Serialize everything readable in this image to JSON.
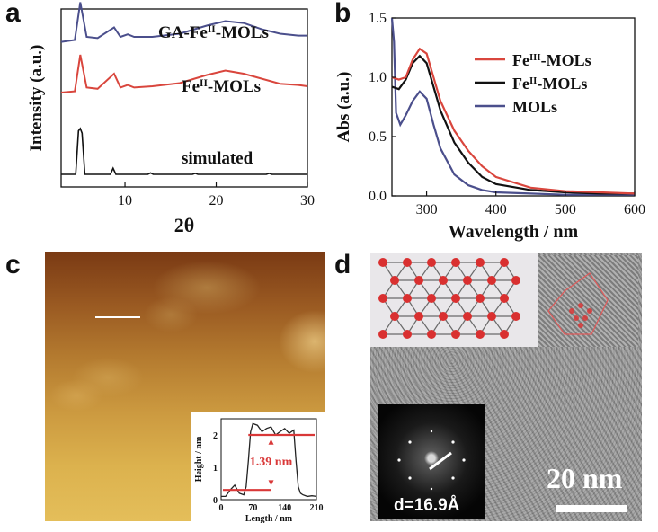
{
  "panels": {
    "a": "a",
    "b": "b",
    "c": "c",
    "d": "d"
  },
  "chart_data": [
    {
      "panel": "a",
      "type": "line",
      "xlabel": "2θ",
      "ylabel": "Intensity (a.u.)",
      "xlim": [
        3,
        30
      ],
      "xticks": [
        "10",
        "20",
        "30"
      ],
      "series": [
        {
          "name": "GA-Fe",
          "sup": "II",
          "suffix": "-MOLs",
          "color": "#4b4f8c",
          "x": [
            3,
            4.5,
            5.1,
            5.8,
            7,
            8.8,
            9.5,
            10.3,
            11,
            13,
            16,
            19,
            21,
            23,
            25,
            27,
            29,
            30
          ],
          "y": [
            0.12,
            0.15,
            0.75,
            0.2,
            0.18,
            0.35,
            0.2,
            0.24,
            0.2,
            0.2,
            0.25,
            0.38,
            0.45,
            0.42,
            0.32,
            0.25,
            0.22,
            0.22
          ]
        },
        {
          "name": "Fe",
          "sup": "II",
          "suffix": "-MOLs",
          "color": "#d9463d",
          "x": [
            3,
            4.5,
            5.1,
            5.8,
            7,
            8.8,
            9.5,
            10.3,
            11,
            13,
            16,
            19,
            21,
            23,
            25,
            27,
            29,
            30
          ],
          "y": [
            0.1,
            0.12,
            0.7,
            0.18,
            0.16,
            0.4,
            0.18,
            0.22,
            0.18,
            0.2,
            0.25,
            0.38,
            0.45,
            0.4,
            0.32,
            0.24,
            0.22,
            0.2
          ]
        },
        {
          "name": "simulated",
          "sup": "",
          "suffix": "",
          "color": "#111111",
          "x": [
            3,
            4.6,
            4.9,
            5.1,
            5.3,
            5.6,
            8.4,
            8.7,
            9.0,
            12.5,
            12.8,
            13.1,
            17.4,
            17.7,
            18,
            25.5,
            25.8,
            26.1,
            30
          ],
          "y": [
            0.02,
            0.02,
            0.95,
            1.0,
            0.9,
            0.02,
            0.02,
            0.15,
            0.02,
            0.02,
            0.05,
            0.02,
            0.02,
            0.04,
            0.02,
            0.02,
            0.04,
            0.02,
            0.02
          ]
        }
      ]
    },
    {
      "panel": "b",
      "type": "line",
      "xlabel": "Wavelength / nm",
      "ylabel": "Abs (a.u.)",
      "xlim": [
        250,
        600
      ],
      "ylim": [
        0,
        1.5
      ],
      "xticks": [
        "300",
        "400",
        "500",
        "600"
      ],
      "yticks": [
        "0.0",
        "0.5",
        "1.0",
        "1.5"
      ],
      "legend": "top-right",
      "series": [
        {
          "name": "Fe",
          "sup": "III",
          "suffix": "-MOLs",
          "color": "#d9463d",
          "x": [
            250,
            260,
            270,
            280,
            290,
            300,
            310,
            320,
            340,
            360,
            380,
            400,
            450,
            500,
            550,
            600
          ],
          "y": [
            1.0,
            0.98,
            1.0,
            1.15,
            1.24,
            1.2,
            1.0,
            0.8,
            0.55,
            0.38,
            0.25,
            0.16,
            0.07,
            0.04,
            0.03,
            0.02
          ]
        },
        {
          "name": "Fe",
          "sup": "II",
          "suffix": "-MOLs",
          "color": "#111111",
          "x": [
            250,
            260,
            270,
            280,
            290,
            300,
            310,
            320,
            340,
            360,
            380,
            400,
            450,
            500,
            550,
            600
          ],
          "y": [
            0.92,
            0.9,
            0.98,
            1.12,
            1.18,
            1.12,
            0.92,
            0.72,
            0.45,
            0.28,
            0.16,
            0.1,
            0.05,
            0.03,
            0.02,
            0.02
          ]
        },
        {
          "name": "MOLs",
          "sup": "",
          "suffix": "",
          "color": "#4b4f8c",
          "x": [
            250,
            253,
            256,
            262,
            270,
            280,
            290,
            300,
            310,
            320,
            340,
            360,
            380,
            400,
            450,
            500,
            550,
            600
          ],
          "y": [
            1.5,
            1.3,
            0.7,
            0.6,
            0.68,
            0.8,
            0.88,
            0.82,
            0.6,
            0.4,
            0.18,
            0.09,
            0.05,
            0.03,
            0.02,
            0.01,
            0.01,
            0.01
          ]
        }
      ]
    },
    {
      "panel": "c-inset",
      "type": "line",
      "xlabel": "Length / nm",
      "ylabel": "Height / nm",
      "xlim": [
        0,
        210
      ],
      "ylim": [
        0,
        2.5
      ],
      "xticks": [
        "0",
        "70",
        "140",
        "210"
      ],
      "yticks": [
        "0",
        "1",
        "2"
      ],
      "annotation": "1.39 nm",
      "series": [
        {
          "name": "",
          "color": "#222222",
          "x": [
            0,
            10,
            20,
            30,
            40,
            50,
            55,
            60,
            65,
            70,
            80,
            90,
            100,
            110,
            120,
            130,
            140,
            150,
            160,
            165,
            170,
            175,
            180,
            190,
            200,
            210
          ],
          "y": [
            0.1,
            0.1,
            0.3,
            0.45,
            0.2,
            0.15,
            0.4,
            1.2,
            2.1,
            2.35,
            2.3,
            2.1,
            2.2,
            2.25,
            2.0,
            2.1,
            2.2,
            2.05,
            2.15,
            1.2,
            0.4,
            0.2,
            0.15,
            0.1,
            0.12,
            0.1
          ]
        }
      ]
    }
  ],
  "tem": {
    "d_spacing": "d=16.9Å",
    "scale_bar": "20 nm"
  }
}
